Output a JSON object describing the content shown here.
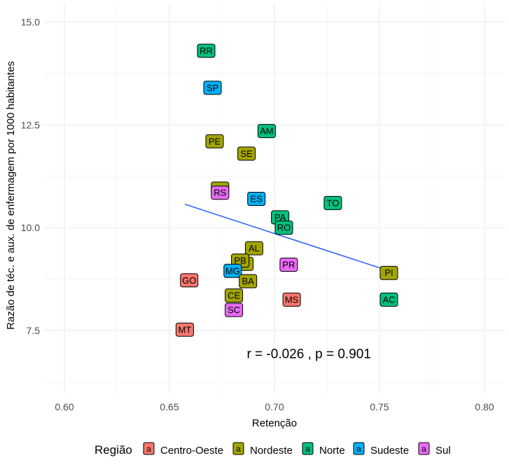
{
  "chart_data": {
    "type": "scatter",
    "title": "",
    "xlabel": "Retenção",
    "ylabel": "Razão de téc. e aux. de enfermagem por 1000 habitantes",
    "xlim": [
      0.59,
      0.81
    ],
    "ylim": [
      5.95,
      15.45
    ],
    "x_ticks": [
      0.6,
      0.65,
      0.7,
      0.75,
      0.8
    ],
    "x_tick_labels": [
      "0.60",
      "0.65",
      "0.70",
      "0.75",
      "0.80"
    ],
    "y_ticks": [
      7.5,
      10.0,
      12.5,
      15.0
    ],
    "y_tick_labels": [
      "7.5",
      "10.0",
      "12.5",
      "15.0"
    ],
    "grid": true,
    "legend_title": "Região",
    "legend_position": "bottom",
    "legend_key_label": "a",
    "groups": [
      {
        "name": "Centro-Oeste",
        "color": "#F8766D"
      },
      {
        "name": "Nordeste",
        "color": "#A3A500"
      },
      {
        "name": "Norte",
        "color": "#00BF7D"
      },
      {
        "name": "Sudeste",
        "color": "#00B0F6"
      },
      {
        "name": "Sul",
        "color": "#E76BF3"
      }
    ],
    "points": [
      {
        "label": "RR",
        "group": "Norte",
        "x": 0.6675,
        "y": 14.3
      },
      {
        "label": "SP",
        "group": "Sudeste",
        "x": 0.6705,
        "y": 13.4
      },
      {
        "label": "PE",
        "group": "Nordeste",
        "x": 0.6715,
        "y": 12.1
      },
      {
        "label": "AM",
        "group": "Norte",
        "x": 0.6963,
        "y": 12.35
      },
      {
        "label": "SE",
        "group": "Nordeste",
        "x": 0.6867,
        "y": 11.8
      },
      {
        "label": "",
        "group": "Nordeste",
        "x": 0.6741,
        "y": 10.95
      },
      {
        "label": "RS",
        "group": "Sul",
        "x": 0.6741,
        "y": 10.85
      },
      {
        "label": "ES",
        "group": "Sudeste",
        "x": 0.6914,
        "y": 10.7
      },
      {
        "label": "TO",
        "group": "Norte",
        "x": 0.7278,
        "y": 10.6
      },
      {
        "label": "PA",
        "group": "Norte",
        "x": 0.7027,
        "y": 10.25
      },
      {
        "label": "RO",
        "group": "Norte",
        "x": 0.7045,
        "y": 10.0
      },
      {
        "label": "AL",
        "group": "Nordeste",
        "x": 0.6903,
        "y": 9.5
      },
      {
        "label": "",
        "group": "Nordeste",
        "x": 0.6857,
        "y": 9.12
      },
      {
        "label": "PB",
        "group": "Nordeste",
        "x": 0.6837,
        "y": 9.2
      },
      {
        "label": "PR",
        "group": "Sul",
        "x": 0.7068,
        "y": 9.1
      },
      {
        "label": "MG",
        "group": "Sudeste",
        "x": 0.6801,
        "y": 8.95
      },
      {
        "label": "PI",
        "group": "Nordeste",
        "x": 0.7545,
        "y": 8.9
      },
      {
        "label": "GO",
        "group": "Centro-Oeste",
        "x": 0.6594,
        "y": 8.72
      },
      {
        "label": "BA",
        "group": "Nordeste",
        "x": 0.6874,
        "y": 8.7
      },
      {
        "label": "CE",
        "group": "Nordeste",
        "x": 0.6807,
        "y": 8.35
      },
      {
        "label": "MS",
        "group": "Centro-Oeste",
        "x": 0.7082,
        "y": 8.25
      },
      {
        "label": "AC",
        "group": "Norte",
        "x": 0.7545,
        "y": 8.25
      },
      {
        "label": "SC",
        "group": "Sul",
        "x": 0.6807,
        "y": 8.0
      },
      {
        "label": "MT",
        "group": "Centro-Oeste",
        "x": 0.6573,
        "y": 7.52
      }
    ],
    "trendline": {
      "x": [
        0.6573,
        0.7545
      ],
      "y": [
        10.57,
        8.95
      ],
      "color": "#3366FF"
    },
    "annotation": {
      "text": "r = -0.026 , p = 0.901",
      "x": 0.7164,
      "y": 6.95
    }
  }
}
